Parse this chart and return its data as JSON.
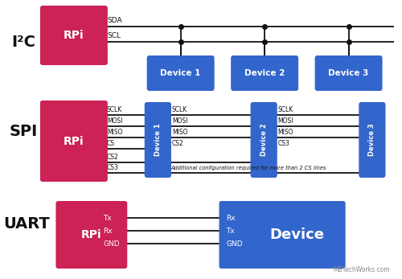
{
  "bg_color": "#ffffff",
  "rpi_color": "#cc2255",
  "device_color": "#3366cc",
  "text_color_white": "#ffffff",
  "text_color_black": "#111111",
  "figsize": [
    5.0,
    3.47
  ],
  "dpi": 100,
  "i2c_label": "I²C",
  "spi_label": "SPI",
  "uart_label": "UART",
  "rpi_label": "RPi",
  "device_label": "Device",
  "watermark": "MBTechWorks.com",
  "i2c_devices": [
    "Device 1",
    "Device 2",
    "Device 3"
  ],
  "spi_lines": [
    "SCLK",
    "MOSI",
    "MISO",
    "CS"
  ],
  "spi_cs_lines": [
    "CS2",
    "CS3"
  ],
  "spi_d2_lines": [
    "SCLK",
    "MOSI",
    "MISO",
    "CS2"
  ],
  "spi_d3_lines": [
    "SCLK",
    "MOSI",
    "MISO",
    "CS3"
  ],
  "uart_rpi_labels": [
    "Tx",
    "Rx",
    "GND"
  ],
  "uart_dev_labels": [
    "Rx",
    "Tx",
    "GND"
  ],
  "spi_note": "Additional configuration required for more than 2 CS lines"
}
